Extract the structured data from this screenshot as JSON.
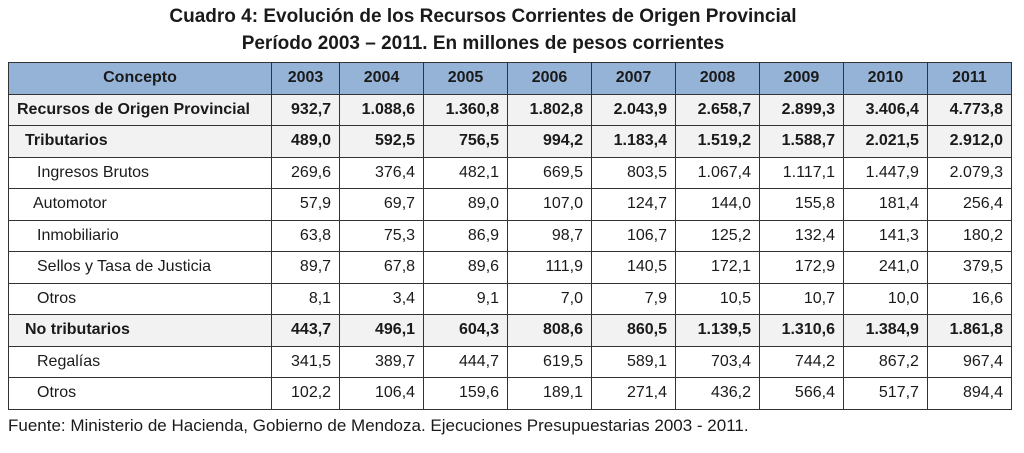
{
  "title": {
    "line1": "Cuadro 4: Evolución de los Recursos Corrientes de Origen Provincial",
    "line2": "Período 2003 – 2011. En millones de pesos corrientes"
  },
  "table": {
    "headers": [
      "Concepto",
      "2003",
      "2004",
      "2005",
      "2006",
      "2007",
      "2008",
      "2009",
      "2010",
      "2011"
    ],
    "rows": [
      {
        "label": "Recursos de Origen  Provincial",
        "values": [
          "932,7",
          "1.088,6",
          "1.360,8",
          "1.802,8",
          "2.043,9",
          "2.658,7",
          "2.899,3",
          "3.406,4",
          "4.773,8"
        ]
      },
      {
        "label": "Tributarios",
        "values": [
          "489,0",
          "592,5",
          "756,5",
          "994,2",
          "1.183,4",
          "1.519,2",
          "1.588,7",
          "2.021,5",
          "2.912,0"
        ]
      },
      {
        "label": "Ingresos Brutos",
        "values": [
          "269,6",
          "376,4",
          "482,1",
          "669,5",
          "803,5",
          "1.067,4",
          "1.117,1",
          "1.447,9",
          "2.079,3"
        ]
      },
      {
        "label": "Automotor",
        "values": [
          "57,9",
          "69,7",
          "89,0",
          "107,0",
          "124,7",
          "144,0",
          "155,8",
          "181,4",
          "256,4"
        ]
      },
      {
        "label": "Inmobiliario",
        "values": [
          "63,8",
          "75,3",
          "86,9",
          "98,7",
          "106,7",
          "125,2",
          "132,4",
          "141,3",
          "180,2"
        ]
      },
      {
        "label": "Sellos y Tasa de Justicia",
        "values": [
          "89,7",
          "67,8",
          "89,6",
          "111,9",
          "140,5",
          "172,1",
          "172,9",
          "241,0",
          "379,5"
        ]
      },
      {
        "label": "Otros",
        "values": [
          "8,1",
          "3,4",
          "9,1",
          "7,0",
          "7,9",
          "10,5",
          "10,7",
          "10,0",
          "16,6"
        ]
      },
      {
        "label": "No tributarios",
        "values": [
          "443,7",
          "496,1",
          "604,3",
          "808,6",
          "860,5",
          "1.139,5",
          "1.310,6",
          "1.384,9",
          "1.861,8"
        ]
      },
      {
        "label": "Regalías",
        "values": [
          "341,5",
          "389,7",
          "444,7",
          "619,5",
          "589,1",
          "703,4",
          "744,2",
          "867,2",
          "967,4"
        ]
      },
      {
        "label": "Otros",
        "values": [
          "102,2",
          "106,4",
          "159,6",
          "189,1",
          "271,4",
          "436,2",
          "566,4",
          "517,7",
          "894,4"
        ]
      }
    ]
  },
  "footer": "Fuente: Ministerio de Hacienda, Gobierno de Mendoza. Ejecuciones Presupuestarias 2003 - 2011.",
  "colors": {
    "header_bg": "#95b3d7",
    "subtotal_bg": "#f2f2f2"
  }
}
